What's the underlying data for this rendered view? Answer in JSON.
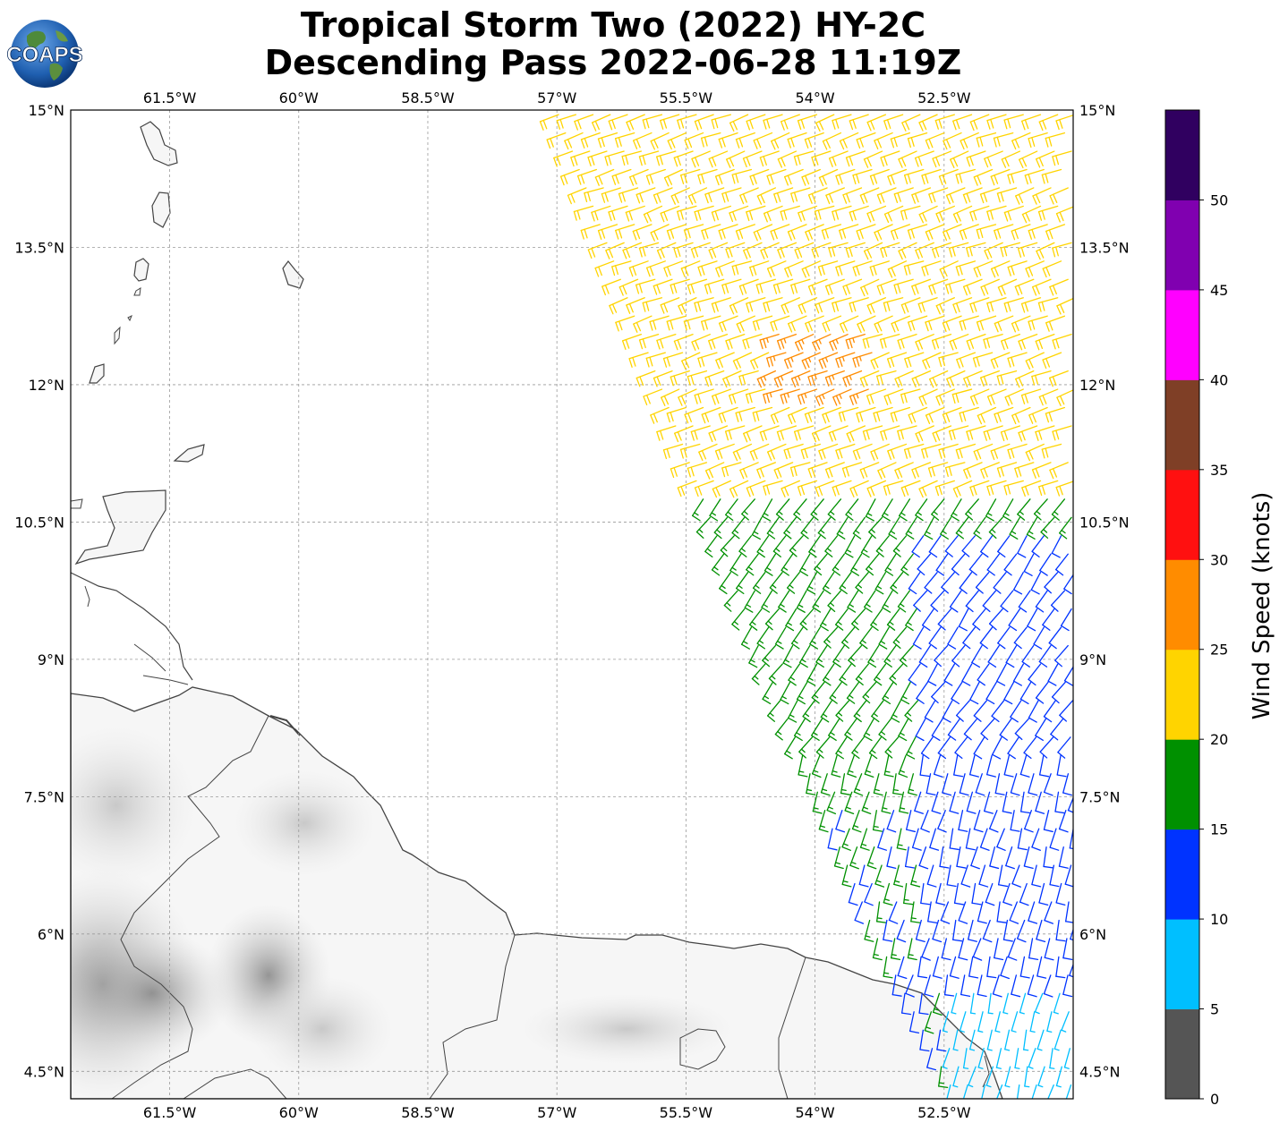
{
  "header": {
    "title_line1": "Tropical Storm Two (2022) HY-2C",
    "title_line2": "Descending Pass 2022-06-28 11:19Z",
    "logo_text": "COAPS"
  },
  "map": {
    "lon_range": [
      -62.65,
      -51.0
    ],
    "lat_range": [
      4.2,
      15.0
    ],
    "lon_ticks": [
      {
        "value": -61.5,
        "label": "61.5°W"
      },
      {
        "value": -60.0,
        "label": "60°W"
      },
      {
        "value": -58.5,
        "label": "58.5°W"
      },
      {
        "value": -57.0,
        "label": "57°W"
      },
      {
        "value": -55.5,
        "label": "55.5°W"
      },
      {
        "value": -54.0,
        "label": "54°W"
      },
      {
        "value": -52.5,
        "label": "52.5°W"
      }
    ],
    "lat_ticks": [
      {
        "value": 15.0,
        "label": "15°N"
      },
      {
        "value": 13.5,
        "label": "13.5°N"
      },
      {
        "value": 12.0,
        "label": "12°N"
      },
      {
        "value": 10.5,
        "label": "10.5°N"
      },
      {
        "value": 9.0,
        "label": "9°N"
      },
      {
        "value": 7.5,
        "label": "7.5°N"
      },
      {
        "value": 6.0,
        "label": "6°N"
      },
      {
        "value": 4.5,
        "label": "4.5°N"
      }
    ],
    "gridlines": true
  },
  "colorbar": {
    "label": "Wind Speed (knots)",
    "ticks": [
      "0",
      "5",
      "10",
      "15",
      "20",
      "25",
      "30",
      "35",
      "40",
      "45",
      "50"
    ],
    "colors": [
      "#555555",
      "#00bfff",
      "#0033ff",
      "#009000",
      "#ffd400",
      "#ff8c00",
      "#ff1010",
      "#7f3f26",
      "#ff00ff",
      "#8000b0",
      "#300060"
    ]
  },
  "wind_field": {
    "swath_west_edge": [
      {
        "lat": 15.0,
        "lon": -57.0
      },
      {
        "lat": 12.0,
        "lon": -55.8
      },
      {
        "lat": 9.0,
        "lon": -54.6
      },
      {
        "lat": 6.0,
        "lon": -53.3
      },
      {
        "lat": 4.3,
        "lon": -52.4
      }
    ],
    "speed_zones": [
      {
        "region": "north",
        "lat_min": 10.8,
        "lat_max": 15.0,
        "speed_kt": 22
      },
      {
        "region": "core",
        "lat_min": 11.9,
        "lat_max": 12.7,
        "lon_min": -54.5,
        "lon_max": -53.3,
        "speed_kt": 27
      },
      {
        "region": "middle",
        "lat_min": 7.5,
        "lat_max": 10.8,
        "speed_kt": 17
      },
      {
        "region": "east",
        "lat_min": 5.5,
        "lat_max": 10.5,
        "lon_min": -52.8,
        "speed_kt": 12
      },
      {
        "region": "south",
        "lat_min": 4.3,
        "lat_max": 5.4,
        "lon_min": -52.5,
        "speed_kt": 8
      }
    ]
  }
}
